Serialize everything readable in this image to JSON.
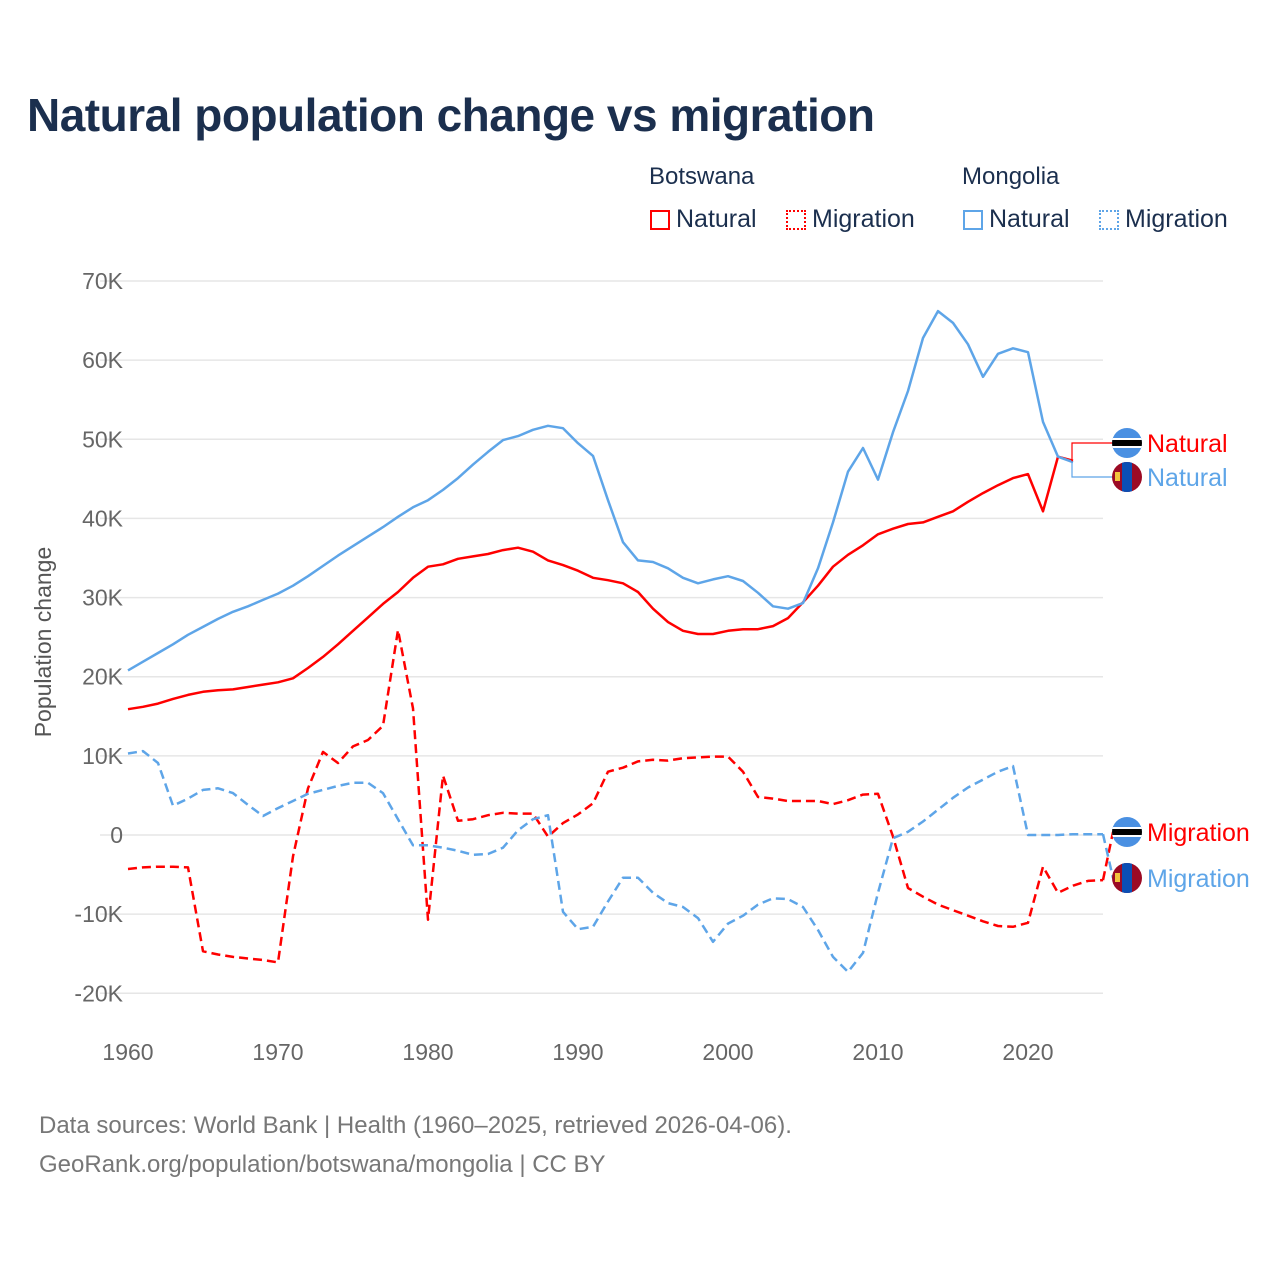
{
  "title": "Natural population change vs migration",
  "legend": {
    "groups": [
      {
        "name": "Botswana",
        "items": [
          "Natural",
          "Migration"
        ]
      },
      {
        "name": "Mongolia",
        "items": [
          "Natural",
          "Migration"
        ]
      }
    ]
  },
  "colors": {
    "botswana": "#ff0000",
    "mongolia": "#5ea5e8",
    "title": "#1b2f4e"
  },
  "footer": {
    "line1": "Data sources: World Bank | Health (1960–2025, retrieved 2026-04-06).",
    "line2": "GeoRank.org/population/botswana/mongolia | CC BY"
  },
  "chart_data": {
    "type": "line",
    "title": "Natural population change vs migration",
    "xlabel": "",
    "ylabel": "Population change",
    "xlim": [
      1960,
      2025
    ],
    "ylim": [
      -20000,
      70000
    ],
    "x_ticks": [
      "1960",
      "1970",
      "1980",
      "1990",
      "2000",
      "2010",
      "2020"
    ],
    "y_ticks": [
      "70K",
      "60K",
      "50K",
      "40K",
      "30K",
      "20K",
      "10K",
      "0",
      "-10K",
      "-20K"
    ],
    "grid": true,
    "legend_position": "top-right",
    "x_start": 1960,
    "series": [
      {
        "name": "Botswana Natural",
        "country": "Botswana",
        "kind": "Natural",
        "color": "#ff0000",
        "dash": false,
        "end_label": "Natural",
        "values": [
          15.9,
          16.2,
          16.6,
          17.2,
          17.7,
          18.1,
          18.3,
          18.4,
          18.7,
          19.0,
          19.3,
          19.8,
          21.1,
          22.5,
          24.1,
          25.8,
          27.5,
          29.2,
          30.7,
          32.5,
          33.9,
          34.2,
          34.9,
          35.2,
          35.5,
          36.0,
          36.3,
          35.8,
          34.7,
          34.1,
          33.4,
          32.5,
          32.2,
          31.8,
          30.7,
          28.6,
          26.9,
          25.8,
          25.4,
          25.4,
          25.8,
          26.0,
          26.0,
          26.4,
          27.4,
          29.4,
          31.5,
          33.9,
          35.4,
          36.6,
          38.0,
          38.7,
          39.3,
          39.5,
          40.2,
          40.9,
          42.1,
          43.2,
          44.2,
          45.1,
          45.6,
          40.9,
          47.8,
          47.3,
          null,
          null
        ]
      },
      {
        "name": "Botswana Migration",
        "country": "Botswana",
        "kind": "Migration",
        "color": "#ff0000",
        "dash": true,
        "end_label": "Migration",
        "values": [
          -4.3,
          -4.1,
          -4.0,
          -4.0,
          -4.1,
          -14.7,
          -15.1,
          -15.4,
          -15.6,
          -15.8,
          -16.1,
          -2.7,
          5.9,
          10.5,
          9.1,
          11.2,
          12.0,
          13.8,
          25.9,
          16.0,
          -10.7,
          7.5,
          1.8,
          2.0,
          2.5,
          2.8,
          2.7,
          2.7,
          -0.2,
          1.5,
          2.6,
          4.0,
          8.0,
          8.5,
          9.3,
          9.5,
          9.4,
          9.7,
          9.8,
          9.9,
          9.9,
          8.0,
          4.8,
          4.6,
          4.3,
          4.3,
          4.3,
          3.9,
          4.4,
          5.1,
          5.2,
          -0.2,
          -6.7,
          -7.8,
          -8.8,
          -9.5,
          -10.2,
          -10.9,
          -11.5,
          -11.6,
          -11.1,
          -4.0,
          -7.3,
          -6.4,
          -5.8,
          -5.7
        ]
      },
      {
        "name": "Mongolia Natural",
        "country": "Mongolia",
        "kind": "Natural",
        "color": "#5ea5e8",
        "dash": false,
        "end_label": "Natural",
        "values": [
          20.8,
          21.9,
          23.0,
          24.1,
          25.3,
          26.3,
          27.3,
          28.2,
          28.9,
          29.7,
          30.5,
          31.5,
          32.7,
          34.0,
          35.3,
          36.5,
          37.7,
          38.9,
          40.2,
          41.4,
          42.3,
          43.6,
          45.1,
          46.8,
          48.4,
          49.9,
          50.4,
          51.2,
          51.7,
          51.4,
          49.5,
          47.9,
          42.3,
          37.0,
          34.7,
          34.5,
          33.7,
          32.5,
          31.8,
          32.3,
          32.7,
          32.1,
          30.6,
          28.9,
          28.6,
          29.3,
          33.7,
          39.5,
          45.9,
          48.9,
          44.9,
          50.9,
          56.1,
          62.8,
          66.2,
          64.7,
          62.0,
          57.9,
          60.8,
          61.5,
          61.0,
          52.2,
          47.8,
          47.1,
          null,
          null
        ]
      },
      {
        "name": "Mongolia Migration",
        "country": "Mongolia",
        "kind": "Migration",
        "color": "#5ea5e8",
        "dash": true,
        "end_label": "Migration",
        "values": [
          10.3,
          10.6,
          9.1,
          3.7,
          4.6,
          5.7,
          5.9,
          5.3,
          3.8,
          2.4,
          3.4,
          4.3,
          5.2,
          5.7,
          6.2,
          6.6,
          6.6,
          5.3,
          2.0,
          -1.3,
          -1.3,
          -1.6,
          -2.0,
          -2.5,
          -2.4,
          -1.6,
          0.6,
          2.0,
          2.5,
          -9.7,
          -11.9,
          -11.6,
          -8.4,
          -5.4,
          -5.4,
          -7.3,
          -8.6,
          -9.1,
          -10.5,
          -13.5,
          -11.2,
          -10.2,
          -8.8,
          -8.0,
          -8.1,
          -9.1,
          -12.0,
          -15.4,
          -17.3,
          -14.9,
          -7.3,
          -0.4,
          0.4,
          1.7,
          3.2,
          4.7,
          6.0,
          7.0,
          8.0,
          8.7,
          0.0,
          0.0,
          0.0,
          0.1,
          0.1,
          0.1
        ]
      }
    ],
    "value_unit": "thousands"
  }
}
